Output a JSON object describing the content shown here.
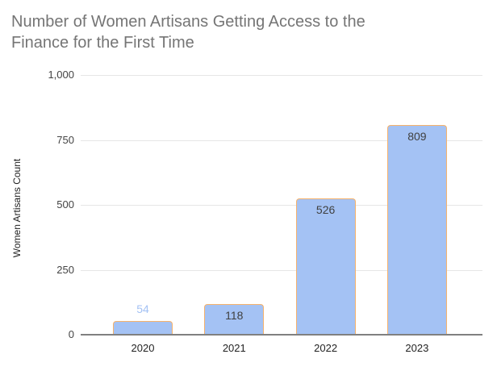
{
  "chart_data": {
    "type": "bar",
    "title": "Number of Women Artisans Getting Access to the Finance for the First Time",
    "categories": [
      "2020",
      "2021",
      "2022",
      "2023"
    ],
    "values": [
      54,
      118,
      526,
      809
    ],
    "bar_labels": [
      "54",
      "118",
      "526",
      "809"
    ],
    "xlabel": "",
    "ylabel": "Women Artisans Count",
    "ylim": [
      0,
      1000
    ],
    "yticks": [
      0,
      250,
      500,
      750,
      1000
    ],
    "ytick_labels": [
      "0",
      "250",
      "500",
      "750",
      "1,000"
    ],
    "grid": true,
    "legend": "none",
    "colors": {
      "title_text": "#757575",
      "bar_fill": "#a4c2f4",
      "bar_border": "#f6b26b",
      "label_inside": "#404040",
      "label_outside": "#a4c2f4",
      "gridline": "#e6e6e6",
      "baseline": "#808080",
      "tick_text": "#444444",
      "axis_text": "#222222"
    }
  }
}
